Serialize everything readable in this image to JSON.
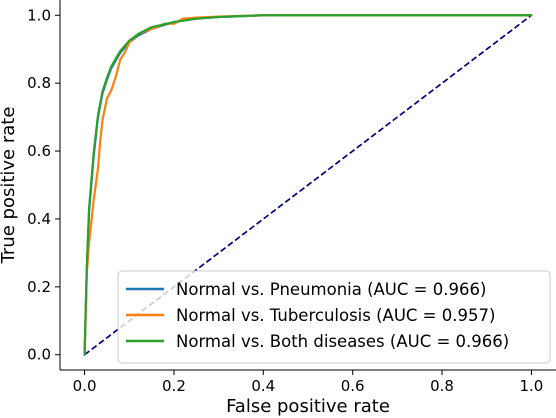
{
  "chart_data": {
    "type": "line",
    "title": "",
    "xlabel": "False positive rate",
    "ylabel": "True positive rate",
    "xlim": [
      -0.055,
      1.055
    ],
    "ylim": [
      -0.045,
      1.045
    ],
    "xticks": [
      0.0,
      0.2,
      0.4,
      0.6,
      0.8,
      1.0
    ],
    "yticks": [
      0.0,
      0.2,
      0.4,
      0.6,
      0.8,
      1.0
    ],
    "xtick_labels": [
      "0.0",
      "0.2",
      "0.4",
      "0.6",
      "0.8",
      "1.0"
    ],
    "ytick_labels": [
      "0.0",
      "0.2",
      "0.4",
      "0.6",
      "0.8",
      "1.0"
    ],
    "grid": false,
    "legend_position": "lower-right",
    "series": [
      {
        "name": "Normal vs. Pneumonia (AUC = 0.966)",
        "color": "#1f77b4",
        "x": [
          0.0,
          0.005,
          0.01,
          0.02,
          0.03,
          0.04,
          0.05,
          0.06,
          0.08,
          0.1,
          0.12,
          0.15,
          0.2,
          0.25,
          0.3,
          0.4,
          1.0
        ],
        "y": [
          0.0,
          0.25,
          0.42,
          0.58,
          0.7,
          0.77,
          0.81,
          0.845,
          0.89,
          0.92,
          0.94,
          0.96,
          0.98,
          0.99,
          0.995,
          1.0,
          1.0
        ]
      },
      {
        "name": "Normal vs. Tuberculosis (AUC = 0.957)",
        "color": "#ff7f0e",
        "x": [
          0.0,
          0.005,
          0.01,
          0.02,
          0.03,
          0.035,
          0.04,
          0.05,
          0.06,
          0.07,
          0.08,
          0.09,
          0.1,
          0.12,
          0.14,
          0.16,
          0.18,
          0.2,
          0.22,
          0.25,
          0.3,
          0.4,
          1.0
        ],
        "y": [
          0.0,
          0.24,
          0.33,
          0.45,
          0.55,
          0.63,
          0.69,
          0.755,
          0.78,
          0.82,
          0.87,
          0.89,
          0.92,
          0.945,
          0.955,
          0.965,
          0.975,
          0.975,
          0.99,
          0.993,
          0.996,
          1.0,
          1.0
        ]
      },
      {
        "name": "Normal vs. Both diseases (AUC = 0.966)",
        "color": "#2ca02c",
        "x": [
          0.0,
          0.005,
          0.01,
          0.02,
          0.03,
          0.04,
          0.05,
          0.06,
          0.08,
          0.1,
          0.12,
          0.15,
          0.2,
          0.25,
          0.3,
          0.4,
          1.0
        ],
        "y": [
          0.0,
          0.26,
          0.43,
          0.59,
          0.705,
          0.775,
          0.815,
          0.85,
          0.895,
          0.925,
          0.945,
          0.965,
          0.98,
          0.99,
          0.995,
          1.0,
          1.0
        ]
      }
    ],
    "reference_line": {
      "x": [
        0.0,
        1.0
      ],
      "y": [
        0.0,
        1.0
      ],
      "color": "#000080",
      "style": "dashed"
    }
  }
}
